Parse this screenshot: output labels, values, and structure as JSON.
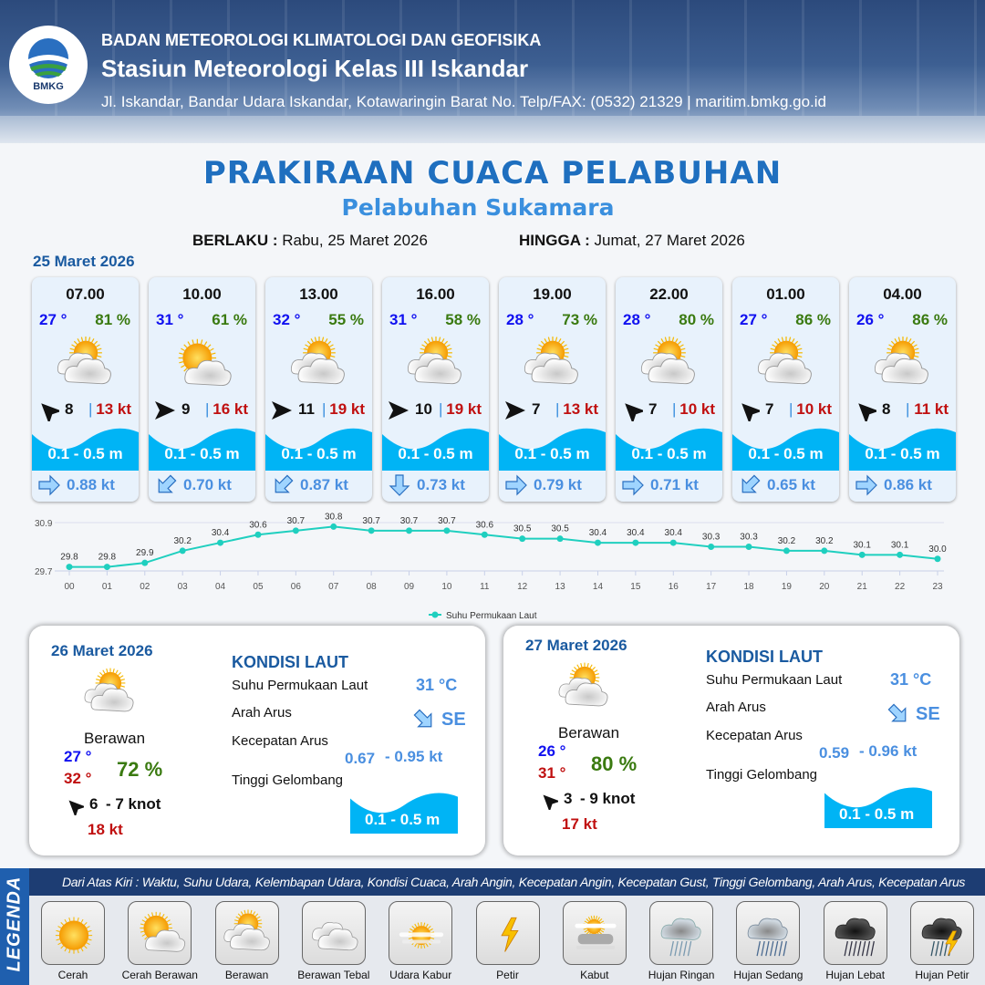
{
  "header": {
    "agency": "BADAN METEOROLOGI KLIMATOLOGI DAN GEOFISIKA",
    "station": "Stasiun Meteorologi Kelas III Iskandar",
    "address": "Jl. Iskandar, Bandar Udara Iskandar, Kotawaringin Barat No. Telp/FAX: (0532) 21329 | maritim.bmkg.go.id",
    "logo_text": "BMKG"
  },
  "title": "PRAKIRAAN CUACA PELABUHAN",
  "subtitle": "Pelabuhan Sukamara",
  "validity": {
    "from_label": "BERLAKU :",
    "from": "Rabu, 25 Maret 2026",
    "to_label": "HINGGA :",
    "to": "Jumat, 27 Maret 2026"
  },
  "day1": {
    "date": "25 Maret 2026",
    "slots": [
      {
        "time": "07.00",
        "temp": "27 °",
        "hum": "81 %",
        "icon": "berawan",
        "wind_dir": "NW",
        "wind": "8",
        "gust": "13 kt",
        "wave": "0.1 - 0.5 m",
        "current_dir": "E",
        "current": "0.88 kt"
      },
      {
        "time": "10.00",
        "temp": "31 °",
        "hum": "61 %",
        "icon": "cerah-berawan",
        "wind_dir": "E",
        "wind": "9",
        "gust": "16 kt",
        "wave": "0.1 - 0.5 m",
        "current_dir": "SW",
        "current": "0.70 kt"
      },
      {
        "time": "13.00",
        "temp": "32 °",
        "hum": "55 %",
        "icon": "berawan",
        "wind_dir": "E",
        "wind": "11",
        "gust": "19 kt",
        "wave": "0.1 - 0.5 m",
        "current_dir": "SW",
        "current": "0.87 kt"
      },
      {
        "time": "16.00",
        "temp": "31 °",
        "hum": "58 %",
        "icon": "berawan",
        "wind_dir": "E",
        "wind": "10",
        "gust": "19 kt",
        "wave": "0.1 - 0.5 m",
        "current_dir": "S",
        "current": "0.73 kt"
      },
      {
        "time": "19.00",
        "temp": "28 °",
        "hum": "73 %",
        "icon": "berawan",
        "wind_dir": "E",
        "wind": "7",
        "gust": "13 kt",
        "wave": "0.1 - 0.5 m",
        "current_dir": "E",
        "current": "0.79 kt"
      },
      {
        "time": "22.00",
        "temp": "28 °",
        "hum": "80 %",
        "icon": "berawan",
        "wind_dir": "NW",
        "wind": "7",
        "gust": "10 kt",
        "wave": "0.1 - 0.5 m",
        "current_dir": "E",
        "current": "0.71 kt"
      },
      {
        "time": "01.00",
        "temp": "27 °",
        "hum": "86 %",
        "icon": "berawan",
        "wind_dir": "NW",
        "wind": "7",
        "gust": "10 kt",
        "wave": "0.1 - 0.5 m",
        "current_dir": "SW",
        "current": "0.65 kt"
      },
      {
        "time": "04.00",
        "temp": "26 °",
        "hum": "86 %",
        "icon": "berawan",
        "wind_dir": "NW",
        "wind": "8",
        "gust": "11 kt",
        "wave": "0.1 - 0.5 m",
        "current_dir": "E",
        "current": "0.86 kt"
      }
    ]
  },
  "chart_data": {
    "type": "line",
    "series": [
      {
        "name": "Suhu Permukaan Laut",
        "values": [
          29.8,
          29.8,
          29.9,
          30.2,
          30.4,
          30.6,
          30.7,
          30.8,
          30.7,
          30.7,
          30.7,
          30.6,
          30.5,
          30.5,
          30.4,
          30.4,
          30.4,
          30.3,
          30.3,
          30.2,
          30.2,
          30.1,
          30.1,
          30.0
        ]
      }
    ],
    "categories": [
      "00",
      "01",
      "02",
      "03",
      "04",
      "05",
      "06",
      "07",
      "08",
      "09",
      "10",
      "11",
      "12",
      "13",
      "14",
      "15",
      "16",
      "17",
      "18",
      "19",
      "20",
      "21",
      "22",
      "23"
    ],
    "ylim": [
      29.7,
      30.9
    ],
    "yticks": [
      "29.7",
      "30.9"
    ],
    "legend": "bottom",
    "color": "#1fcfbf",
    "data_labels": true
  },
  "days": [
    {
      "date": "26 Maret 2026",
      "icon": "berawan",
      "condition": "Berawan",
      "tmin": "27 °",
      "tmax": "32 °",
      "hum": "72 %",
      "wind_dir": "NW",
      "wind_min": "6",
      "wind_max": "- 7 knot",
      "gust": "18 kt",
      "kondisi_label": "KONDISI LAUT",
      "sst_label": "Suhu Permukaan Laut",
      "sst": "31 °C",
      "dir_label": "Arah Arus",
      "dir": "SE",
      "speed_label": "Kecepatan Arus",
      "speed_min": "0.67",
      "speed_max": "- 0.95 kt",
      "wave_label": "Tinggi Gelombang",
      "wave": "0.1 - 0.5 m"
    },
    {
      "date": "27 Maret 2026",
      "icon": "berawan",
      "condition": "Berawan",
      "tmin": "26 °",
      "tmax": "31 °",
      "hum": "80 %",
      "wind_dir": "NW",
      "wind_min": "3",
      "wind_max": "- 9 knot",
      "gust": "17 kt",
      "kondisi_label": "KONDISI LAUT",
      "sst_label": "Suhu Permukaan Laut",
      "sst": "31 °C",
      "dir_label": "Arah Arus",
      "dir": "SE",
      "speed_label": "Kecepatan Arus",
      "speed_min": "0.59",
      "speed_max": "- 0.96 kt",
      "wave_label": "Tinggi Gelombang",
      "wave": "0.1 - 0.5 m"
    }
  ],
  "legend": {
    "title": "LEGENDA",
    "description": "Dari Atas Kiri : Waktu, Suhu Udara, Kelembapan Udara, Kondisi Cuaca, Arah Angin, Kecepatan Angin, Kecepatan Gust, Tinggi Gelombang, Arah Arus, Kecepatan Arus",
    "items": [
      {
        "icon": "cerah",
        "label": "Cerah"
      },
      {
        "icon": "cerah-berawan",
        "label": "Cerah Berawan"
      },
      {
        "icon": "berawan",
        "label": "Berawan"
      },
      {
        "icon": "berawan-tebal",
        "label": "Berawan Tebal"
      },
      {
        "icon": "udara-kabur",
        "label": "Udara Kabur"
      },
      {
        "icon": "petir",
        "label": "Petir"
      },
      {
        "icon": "kabut",
        "label": "Kabut"
      },
      {
        "icon": "hujan-ringan",
        "label": "Hujan Ringan"
      },
      {
        "icon": "hujan-sedang",
        "label": "Hujan Sedang"
      },
      {
        "icon": "hujan-lebat",
        "label": "Hujan Lebat"
      },
      {
        "icon": "hujan-petir",
        "label": "Hujan Petir"
      }
    ]
  },
  "colors": {
    "title": "#1f6fbf",
    "wave": "#00b4f5",
    "temp": "#1010f0",
    "humidity": "#3a7a10",
    "gust": "#c01010",
    "current": "#4a8fe0",
    "legend_band": "#1d3d73"
  }
}
